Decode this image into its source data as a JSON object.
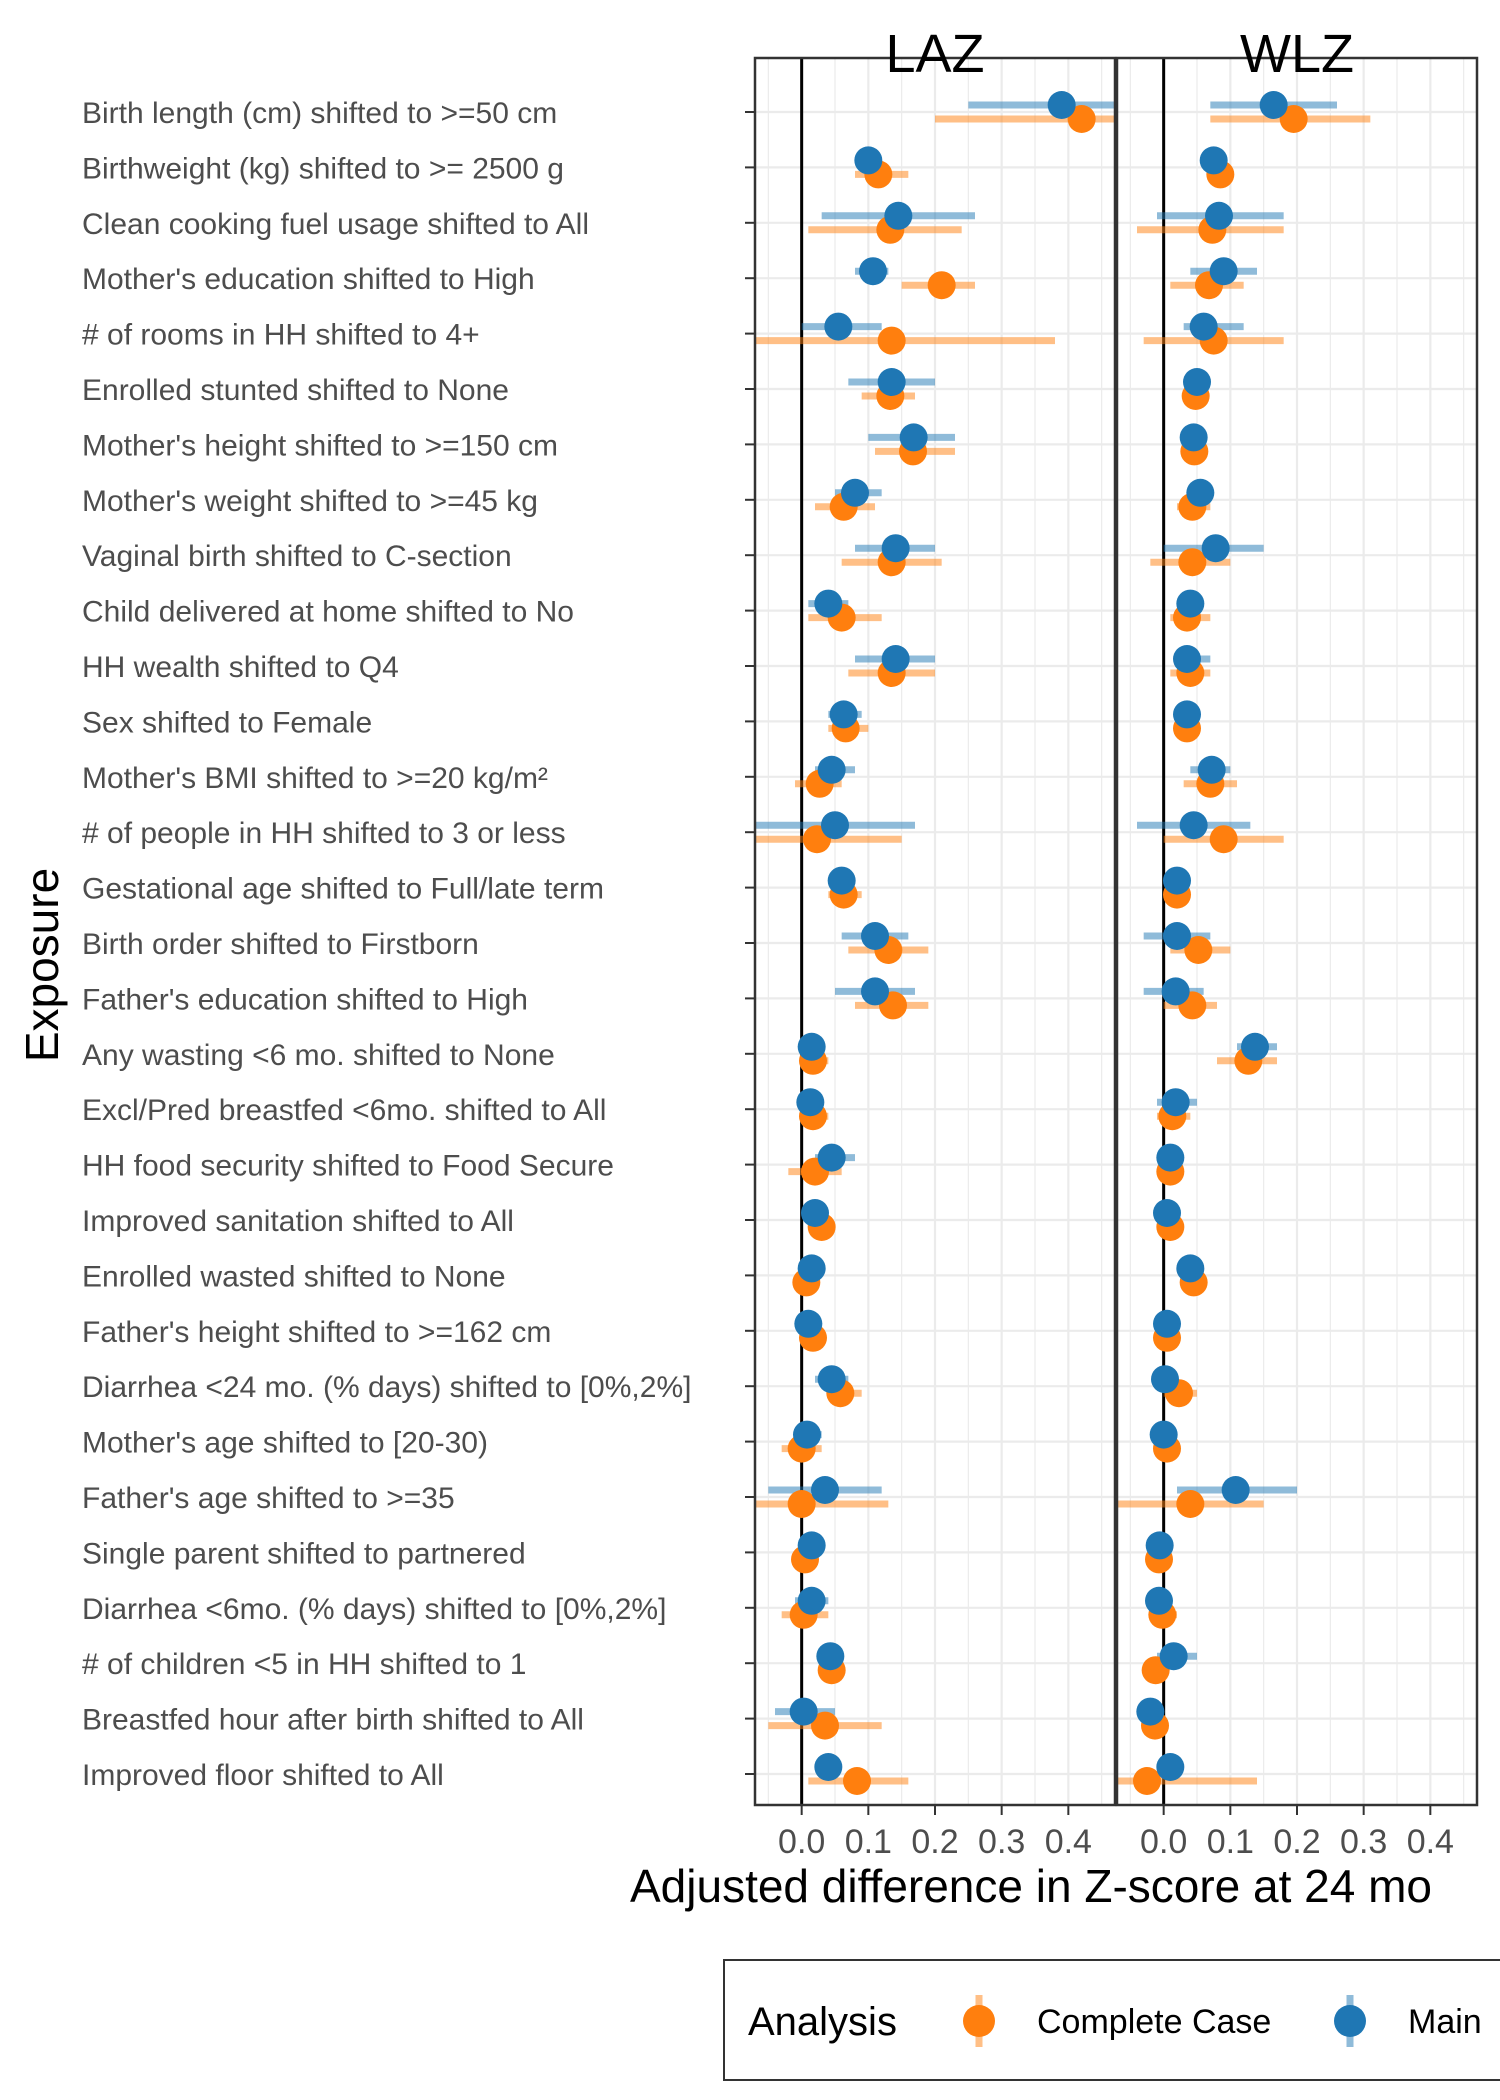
{
  "chart_data": {
    "type": "forest",
    "ylabel": "Exposure",
    "xlabel": "Adjusted difference in Z-score at 24 mo",
    "xlim": [
      -0.07,
      0.47
    ],
    "xticks": [
      "0.0",
      "0.1",
      "0.2",
      "0.3",
      "0.4"
    ],
    "grid": true,
    "legend": {
      "title": "Analysis",
      "position": "bottom",
      "items": [
        {
          "label": "Complete Case",
          "color": "#ff7f0e"
        },
        {
          "label": "Main",
          "color": "#1f77b4"
        }
      ]
    },
    "colors": {
      "complete_case": "#ff7f0e",
      "main": "#1f77b4"
    },
    "exposures": [
      "Birth length (cm) shifted to >=50 cm",
      "Birthweight (kg) shifted to >= 2500 g",
      "Clean cooking fuel usage shifted to All",
      "Mother's education shifted to High",
      "# of rooms in HH shifted to 4+",
      "Enrolled stunted shifted to None",
      "Mother's height shifted to >=150 cm",
      "Mother's weight shifted to >=45 kg",
      "Vaginal birth shifted to C-section",
      "Child delivered at home shifted to No",
      "HH wealth shifted to Q4",
      "Sex shifted to Female",
      "Mother's BMI shifted to >=20 kg/m²",
      "# of people in HH shifted to 3 or less",
      "Gestational age shifted to Full/late term",
      "Birth order shifted to Firstborn",
      "Father's education shifted to High",
      "Any wasting  <6 mo. shifted to None",
      "Excl/Pred breastfed <6mo. shifted to All",
      "HH food security shifted to Food Secure",
      "Improved sanitation shifted to All",
      "Enrolled wasted shifted to None",
      "Father's height shifted to >=162 cm",
      "Diarrhea <24 mo.  (% days) shifted to [0%,2%]",
      "Mother's age shifted to [20-30)",
      "Father's age shifted to >=35",
      "Single parent shifted to partnered",
      "Diarrhea <6mo. (% days) shifted to [0%,2%]",
      "# of children <5 in HH shifted to 1",
      "Breastfed hour after birth shifted to All",
      "Improved floor shifted to All"
    ],
    "panels": [
      {
        "title": "LAZ",
        "series": [
          {
            "name": "Main",
            "points": [
              [
                0.39,
                0.25,
                0.48
              ],
              [
                0.1,
                0.08,
                0.12
              ],
              [
                0.145,
                0.03,
                0.26
              ],
              [
                0.107,
                0.08,
                0.13
              ],
              [
                0.055,
                0.0,
                0.12
              ],
              [
                0.135,
                0.07,
                0.2
              ],
              [
                0.168,
                0.1,
                0.23
              ],
              [
                0.08,
                0.05,
                0.12
              ],
              [
                0.141,
                0.08,
                0.2
              ],
              [
                0.04,
                0.01,
                0.07
              ],
              [
                0.141,
                0.08,
                0.2
              ],
              [
                0.063,
                0.04,
                0.09
              ],
              [
                0.045,
                0.02,
                0.08
              ],
              [
                0.05,
                -0.07,
                0.17
              ],
              [
                0.06,
                0.05,
                0.08
              ],
              [
                0.11,
                0.06,
                0.16
              ],
              [
                0.11,
                0.05,
                0.17
              ],
              [
                0.015,
                0.0,
                0.03
              ],
              [
                0.013,
                0.0,
                0.03
              ],
              [
                0.045,
                0.02,
                0.08
              ],
              [
                0.02,
                0.0,
                0.04
              ],
              [
                0.015,
                0.0,
                0.03
              ],
              [
                0.01,
                -0.01,
                0.03
              ],
              [
                0.045,
                0.02,
                0.07
              ],
              [
                0.008,
                -0.01,
                0.03
              ],
              [
                0.035,
                -0.05,
                0.12
              ],
              [
                0.015,
                0.0,
                0.03
              ],
              [
                0.015,
                -0.01,
                0.04
              ],
              [
                0.043,
                0.03,
                0.06
              ],
              [
                0.003,
                -0.04,
                0.05
              ],
              [
                0.04,
                0.02,
                0.06
              ]
            ]
          },
          {
            "name": "Complete Case",
            "points": [
              [
                0.42,
                0.2,
                0.48
              ],
              [
                0.115,
                0.08,
                0.16
              ],
              [
                0.133,
                0.01,
                0.24
              ],
              [
                0.21,
                0.15,
                0.26
              ],
              [
                0.135,
                -0.07,
                0.38
              ],
              [
                0.133,
                0.09,
                0.17
              ],
              [
                0.167,
                0.11,
                0.23
              ],
              [
                0.063,
                0.02,
                0.11
              ],
              [
                0.135,
                0.06,
                0.21
              ],
              [
                0.06,
                0.01,
                0.12
              ],
              [
                0.135,
                0.07,
                0.2
              ],
              [
                0.066,
                0.04,
                0.1
              ],
              [
                0.027,
                -0.01,
                0.06
              ],
              [
                0.023,
                -0.07,
                0.15
              ],
              [
                0.063,
                0.04,
                0.09
              ],
              [
                0.13,
                0.07,
                0.19
              ],
              [
                0.137,
                0.08,
                0.19
              ],
              [
                0.017,
                0.0,
                0.04
              ],
              [
                0.017,
                0.0,
                0.04
              ],
              [
                0.02,
                -0.02,
                0.06
              ],
              [
                0.03,
                0.01,
                0.05
              ],
              [
                0.007,
                -0.01,
                0.02
              ],
              [
                0.017,
                0.0,
                0.03
              ],
              [
                0.058,
                0.04,
                0.09
              ],
              [
                0.0,
                -0.03,
                0.03
              ],
              [
                0.0,
                -0.07,
                0.13
              ],
              [
                0.005,
                -0.01,
                0.02
              ],
              [
                0.003,
                -0.03,
                0.04
              ],
              [
                0.045,
                0.03,
                0.06
              ],
              [
                0.035,
                -0.05,
                0.12
              ],
              [
                0.083,
                0.01,
                0.16
              ]
            ]
          }
        ]
      },
      {
        "title": "WLZ",
        "series": [
          {
            "name": "Main",
            "points": [
              [
                0.165,
                0.07,
                0.26
              ],
              [
                0.075,
                0.06,
                0.09
              ],
              [
                0.083,
                -0.01,
                0.18
              ],
              [
                0.09,
                0.04,
                0.14
              ],
              [
                0.06,
                0.03,
                0.12
              ],
              [
                0.05,
                0.04,
                0.06
              ],
              [
                0.045,
                0.03,
                0.06
              ],
              [
                0.055,
                0.04,
                0.07
              ],
              [
                0.078,
                0.0,
                0.15
              ],
              [
                0.04,
                0.02,
                0.06
              ],
              [
                0.035,
                0.02,
                0.07
              ],
              [
                0.035,
                0.02,
                0.05
              ],
              [
                0.072,
                0.04,
                0.1
              ],
              [
                0.045,
                -0.04,
                0.13
              ],
              [
                0.02,
                0.01,
                0.03
              ],
              [
                0.02,
                -0.03,
                0.07
              ],
              [
                0.018,
                -0.03,
                0.06
              ],
              [
                0.137,
                0.11,
                0.17
              ],
              [
                0.018,
                -0.01,
                0.05
              ],
              [
                0.01,
                0.0,
                0.02
              ],
              [
                0.005,
                0.0,
                0.02
              ],
              [
                0.04,
                0.03,
                0.05
              ],
              [
                0.005,
                -0.01,
                0.02
              ],
              [
                0.002,
                -0.01,
                0.02
              ],
              [
                0.0,
                -0.01,
                0.02
              ],
              [
                0.108,
                0.02,
                0.2
              ],
              [
                -0.006,
                -0.02,
                0.01
              ],
              [
                -0.007,
                -0.02,
                0.01
              ],
              [
                0.015,
                -0.01,
                0.05
              ],
              [
                -0.02,
                -0.03,
                0.0
              ],
              [
                0.01,
                0.0,
                0.02
              ]
            ]
          },
          {
            "name": "Complete Case",
            "points": [
              [
                0.195,
                0.07,
                0.31
              ],
              [
                0.085,
                0.07,
                0.1
              ],
              [
                0.073,
                -0.04,
                0.18
              ],
              [
                0.068,
                0.01,
                0.12
              ],
              [
                0.075,
                -0.03,
                0.18
              ],
              [
                0.048,
                0.04,
                0.06
              ],
              [
                0.046,
                0.03,
                0.06
              ],
              [
                0.043,
                0.02,
                0.07
              ],
              [
                0.043,
                -0.02,
                0.1
              ],
              [
                0.035,
                0.01,
                0.07
              ],
              [
                0.04,
                0.01,
                0.07
              ],
              [
                0.035,
                0.02,
                0.05
              ],
              [
                0.07,
                0.03,
                0.11
              ],
              [
                0.09,
                0.0,
                0.18
              ],
              [
                0.02,
                0.01,
                0.03
              ],
              [
                0.052,
                0.01,
                0.1
              ],
              [
                0.043,
                0.0,
                0.08
              ],
              [
                0.127,
                0.08,
                0.17
              ],
              [
                0.013,
                -0.01,
                0.04
              ],
              [
                0.01,
                0.0,
                0.02
              ],
              [
                0.01,
                0.0,
                0.02
              ],
              [
                0.045,
                0.03,
                0.06
              ],
              [
                0.005,
                -0.01,
                0.02
              ],
              [
                0.023,
                0.0,
                0.05
              ],
              [
                0.005,
                -0.01,
                0.02
              ],
              [
                0.04,
                -0.07,
                0.15
              ],
              [
                -0.007,
                -0.02,
                0.01
              ],
              [
                -0.002,
                -0.02,
                0.02
              ],
              [
                -0.012,
                -0.02,
                0.0
              ],
              [
                -0.013,
                -0.03,
                0.0
              ],
              [
                -0.025,
                -0.07,
                0.14
              ]
            ]
          }
        ]
      }
    ]
  }
}
